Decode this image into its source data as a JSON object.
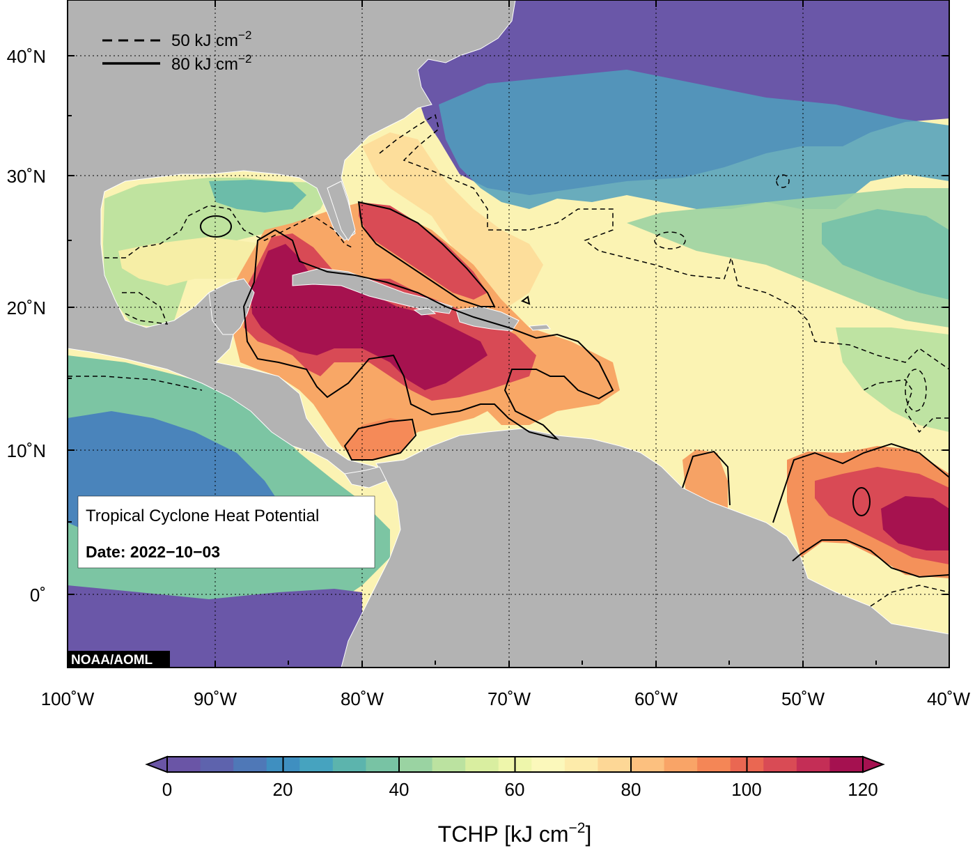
{
  "map": {
    "lat_labels": [
      "40˚N",
      "30˚N",
      "20˚N",
      "10˚N",
      "0˚"
    ],
    "lon_labels": [
      "100˚W",
      "90˚W",
      "80˚W",
      "70˚W",
      "60˚W",
      "50˚W",
      "40˚W"
    ],
    "legend": {
      "dashed_label": "50 kJ cm",
      "solid_label": "80 kJ cm",
      "superscript": "−2"
    },
    "info_box": {
      "title": "Tropical Cyclone Heat Potential",
      "date": "Date: 2022−10−03"
    },
    "credit": "NOAA/AOML",
    "colors": {
      "land": "#b3b3b3",
      "ocean_low": "#6a57a8",
      "ocean_high": "#a51150"
    }
  },
  "colorbar": {
    "tick_labels": [
      "0",
      "20",
      "40",
      "60",
      "80",
      "100",
      "120"
    ],
    "title": "TCHP [kJ cm",
    "title_sup": "−2",
    "title_end": "]",
    "stops": [
      "#6a55a6",
      "#5e63ad",
      "#4f78b7",
      "#3f8fc0",
      "#46a3bf",
      "#5cb4ad",
      "#78c3a4",
      "#9ad3a2",
      "#bbe2a0",
      "#d9eea0",
      "#eef6ab",
      "#fbf8bb",
      "#fdebaa",
      "#fdd796",
      "#fcc07f",
      "#f9a467",
      "#f48656",
      "#ea6752",
      "#d94b55",
      "#c42e56",
      "#a51150"
    ]
  }
}
